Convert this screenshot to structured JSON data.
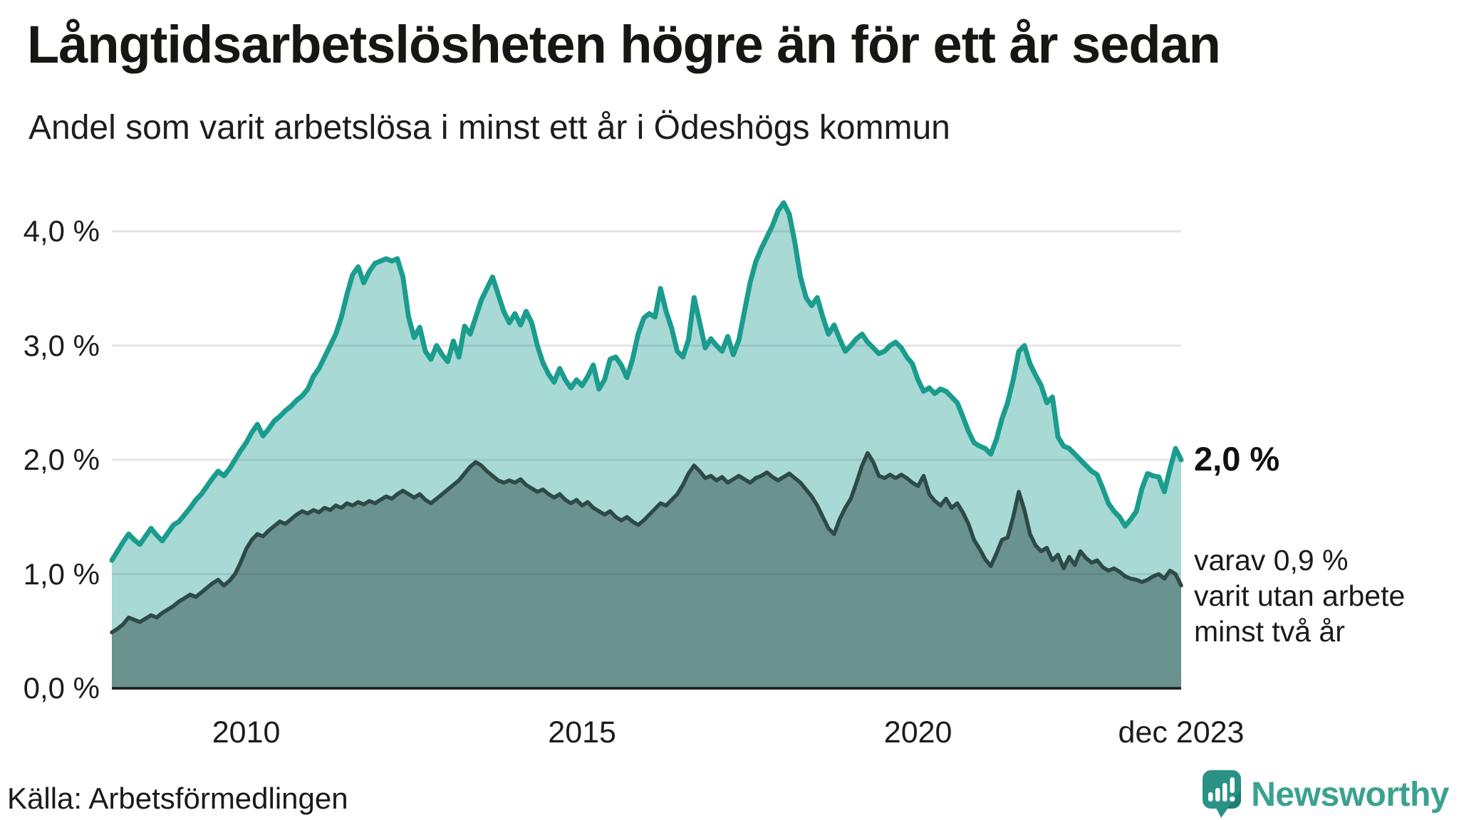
{
  "header": {
    "title": "Långtidsarbetslösheten högre än för ett år sedan",
    "subtitle": "Andel som varit arbetslösa i minst ett år i Ödeshögs kommun"
  },
  "chart_data": {
    "type": "area",
    "title": "Långtidsarbetslösheten högre än för ett år sedan",
    "subtitle": "Andel som varit arbetslösa i minst ett år i Ödeshögs kommun",
    "x_unit": "month",
    "x_range": [
      "2008-01",
      "2023-12"
    ],
    "ylim": [
      0,
      4.2
    ],
    "grid": true,
    "grid_values": [
      1,
      2,
      3,
      4
    ],
    "colors": {
      "line_total": "#1a9c8e",
      "fill_total": "rgba(26,155,141,0.38)",
      "line_two_years": "#2e4a46",
      "fill_two_years": "rgba(40,70,66,0.48)",
      "gridline": "#e4e4e8",
      "baseline": "#1a1a1a"
    },
    "y_ticks": [
      {
        "label": "4,0 %",
        "value": 4
      },
      {
        "label": "3,0 %",
        "value": 3
      },
      {
        "label": "2,0 %",
        "value": 2
      },
      {
        "label": "1,0 %",
        "value": 1
      },
      {
        "label": "0,0 %",
        "value": 0
      }
    ],
    "x_ticks": [
      {
        "label": "2010",
        "index": 24
      },
      {
        "label": "2015",
        "index": 84
      },
      {
        "label": "2020",
        "index": 144
      },
      {
        "label": "dec 2023",
        "index": 191
      }
    ],
    "series": [
      {
        "name": "Andel som varit arbetslösa i minst ett år",
        "end_value_label": "2,0 %",
        "values": [
          1.12,
          1.2,
          1.28,
          1.35,
          1.3,
          1.26,
          1.33,
          1.4,
          1.34,
          1.29,
          1.36,
          1.43,
          1.46,
          1.52,
          1.58,
          1.65,
          1.7,
          1.77,
          1.84,
          1.9,
          1.86,
          1.92,
          2.0,
          2.08,
          2.15,
          2.24,
          2.31,
          2.21,
          2.27,
          2.34,
          2.38,
          2.43,
          2.47,
          2.52,
          2.56,
          2.62,
          2.73,
          2.8,
          2.9,
          3.0,
          3.1,
          3.25,
          3.45,
          3.62,
          3.69,
          3.55,
          3.65,
          3.72,
          3.74,
          3.76,
          3.74,
          3.76,
          3.6,
          3.25,
          3.07,
          3.16,
          2.95,
          2.88,
          3.0,
          2.92,
          2.86,
          3.04,
          2.9,
          3.17,
          3.1,
          3.25,
          3.4,
          3.5,
          3.6,
          3.45,
          3.3,
          3.2,
          3.28,
          3.18,
          3.3,
          3.2,
          3.0,
          2.85,
          2.75,
          2.68,
          2.8,
          2.7,
          2.63,
          2.7,
          2.65,
          2.73,
          2.83,
          2.62,
          2.7,
          2.88,
          2.9,
          2.83,
          2.72,
          2.88,
          3.1,
          3.24,
          3.28,
          3.25,
          3.5,
          3.3,
          3.15,
          2.95,
          2.9,
          3.05,
          3.42,
          3.2,
          2.98,
          3.06,
          3.0,
          2.95,
          3.08,
          2.92,
          3.05,
          3.3,
          3.55,
          3.73,
          3.85,
          3.95,
          4.05,
          4.18,
          4.25,
          4.15,
          3.9,
          3.6,
          3.42,
          3.35,
          3.42,
          3.25,
          3.1,
          3.18,
          3.06,
          2.95,
          3.0,
          3.06,
          3.1,
          3.03,
          2.98,
          2.93,
          2.95,
          3.0,
          3.03,
          2.98,
          2.9,
          2.84,
          2.7,
          2.6,
          2.63,
          2.58,
          2.62,
          2.6,
          2.55,
          2.5,
          2.38,
          2.25,
          2.15,
          2.12,
          2.1,
          2.05,
          2.18,
          2.36,
          2.5,
          2.7,
          2.95,
          3.0,
          2.84,
          2.74,
          2.65,
          2.5,
          2.55,
          2.2,
          2.12,
          2.1,
          2.05,
          2.0,
          1.95,
          1.9,
          1.87,
          1.75,
          1.62,
          1.55,
          1.5,
          1.42,
          1.48,
          1.55,
          1.75,
          1.88,
          1.86,
          1.85,
          1.72,
          1.92,
          2.1,
          2.0
        ]
      },
      {
        "name": "varav utan arbete minst två år",
        "end_value_label": "0,9 %",
        "values": [
          0.49,
          0.52,
          0.56,
          0.62,
          0.6,
          0.58,
          0.61,
          0.64,
          0.62,
          0.66,
          0.69,
          0.72,
          0.76,
          0.79,
          0.82,
          0.8,
          0.84,
          0.88,
          0.92,
          0.95,
          0.9,
          0.94,
          1.0,
          1.1,
          1.22,
          1.3,
          1.35,
          1.33,
          1.38,
          1.42,
          1.46,
          1.44,
          1.48,
          1.52,
          1.55,
          1.53,
          1.56,
          1.54,
          1.58,
          1.56,
          1.6,
          1.58,
          1.62,
          1.6,
          1.63,
          1.61,
          1.64,
          1.62,
          1.65,
          1.68,
          1.66,
          1.7,
          1.73,
          1.7,
          1.67,
          1.7,
          1.65,
          1.62,
          1.66,
          1.7,
          1.74,
          1.78,
          1.82,
          1.88,
          1.94,
          1.98,
          1.95,
          1.9,
          1.86,
          1.82,
          1.8,
          1.82,
          1.8,
          1.83,
          1.78,
          1.75,
          1.72,
          1.74,
          1.7,
          1.67,
          1.7,
          1.65,
          1.62,
          1.65,
          1.6,
          1.63,
          1.58,
          1.55,
          1.52,
          1.55,
          1.5,
          1.47,
          1.5,
          1.46,
          1.43,
          1.47,
          1.52,
          1.57,
          1.62,
          1.6,
          1.65,
          1.7,
          1.78,
          1.88,
          1.95,
          1.9,
          1.84,
          1.86,
          1.82,
          1.85,
          1.8,
          1.83,
          1.86,
          1.83,
          1.8,
          1.84,
          1.86,
          1.89,
          1.85,
          1.82,
          1.85,
          1.88,
          1.84,
          1.8,
          1.74,
          1.68,
          1.6,
          1.5,
          1.4,
          1.35,
          1.48,
          1.58,
          1.66,
          1.8,
          1.95,
          2.06,
          1.98,
          1.86,
          1.84,
          1.87,
          1.84,
          1.87,
          1.84,
          1.8,
          1.77,
          1.86,
          1.7,
          1.64,
          1.6,
          1.66,
          1.58,
          1.62,
          1.54,
          1.44,
          1.3,
          1.22,
          1.13,
          1.07,
          1.18,
          1.3,
          1.32,
          1.5,
          1.72,
          1.56,
          1.35,
          1.25,
          1.2,
          1.23,
          1.12,
          1.17,
          1.05,
          1.15,
          1.08,
          1.2,
          1.14,
          1.1,
          1.12,
          1.06,
          1.03,
          1.05,
          1.02,
          0.98,
          0.96,
          0.95,
          0.93,
          0.95,
          0.98,
          1.0,
          0.96,
          1.03,
          1.0,
          0.9
        ]
      }
    ],
    "annotations": {
      "end_value_label": "2,0 %",
      "secondary": [
        "varav 0,9 %",
        "varit utan arbete",
        "minst två år"
      ]
    }
  },
  "footer": {
    "source": "Källa: Arbetsförmedlingen",
    "brand": "Newsworthy"
  }
}
